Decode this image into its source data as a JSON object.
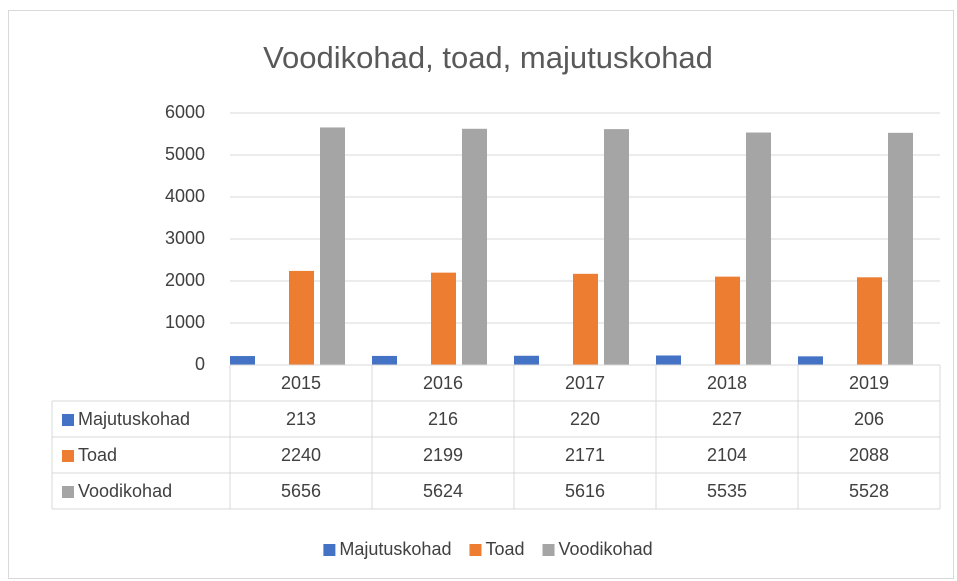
{
  "chart_data": {
    "type": "bar",
    "title": "Voodikohad, toad, majutuskohad",
    "categories": [
      "2015",
      "2016",
      "2017",
      "2018",
      "2019"
    ],
    "series": [
      {
        "name": "Majutuskohad",
        "color": "#4472c4",
        "values": [
          213,
          216,
          220,
          227,
          206
        ]
      },
      {
        "name": "Toad",
        "color": "#ed7d31",
        "values": [
          2240,
          2199,
          2171,
          2104,
          2088
        ]
      },
      {
        "name": "Voodikohad",
        "color": "#a5a5a5",
        "values": [
          5656,
          5624,
          5616,
          5535,
          5528
        ]
      }
    ],
    "ylim": [
      0,
      6000
    ],
    "yticks": [
      0,
      1000,
      2000,
      3000,
      4000,
      5000,
      6000
    ],
    "grid": true,
    "legend": "bottom",
    "data_table": true
  }
}
